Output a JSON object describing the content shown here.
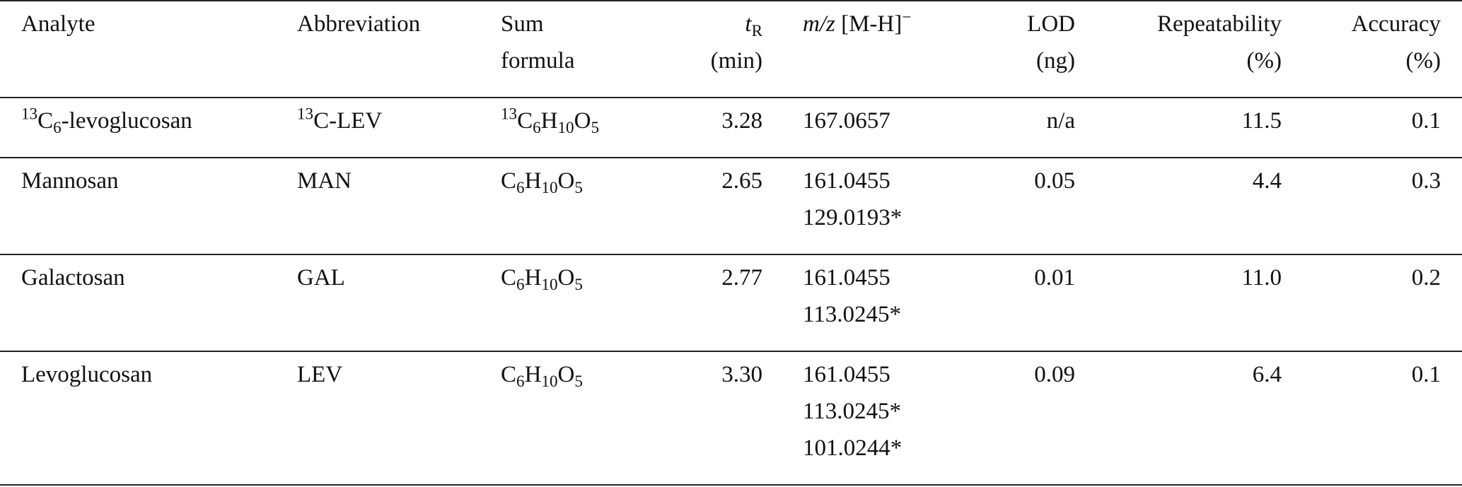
{
  "table": {
    "header": [
      [
        "Analyte"
      ],
      [
        "Abbreviation"
      ],
      [
        "Sum",
        "formula"
      ],
      [
        [
          {
            "text": "t",
            "italic": true
          },
          {
            "text": "R",
            "pos": "sub"
          }
        ],
        "(min)"
      ],
      [
        [
          {
            "text": "m/z",
            "italic": true
          },
          {
            "text": " [M-H]"
          },
          {
            "text": "−",
            "pos": "sup"
          }
        ]
      ],
      [
        "LOD",
        "(ng)"
      ],
      [
        "Repeatability",
        "(%)"
      ],
      [
        "Accuracy",
        "(%)"
      ]
    ],
    "rows": [
      [
        [
          [
            {
              "text": "13",
              "pos": "sup"
            },
            {
              "text": "C"
            },
            {
              "text": "6",
              "pos": "sub"
            },
            {
              "text": "-levoglucosan"
            }
          ]
        ],
        [
          [
            {
              "text": "13",
              "pos": "sup"
            },
            {
              "text": "C-LEV"
            }
          ]
        ],
        [
          [
            {
              "text": "13",
              "pos": "sup"
            },
            {
              "text": "C"
            },
            {
              "text": "6",
              "pos": "sub"
            },
            {
              "text": "H"
            },
            {
              "text": "10",
              "pos": "sub"
            },
            {
              "text": "O"
            },
            {
              "text": "5",
              "pos": "sub"
            }
          ]
        ],
        [
          "3.28"
        ],
        [
          "167.0657"
        ],
        [
          "n/a"
        ],
        [
          "11.5"
        ],
        [
          "0.1"
        ]
      ],
      [
        [
          "Mannosan"
        ],
        [
          "MAN"
        ],
        [
          [
            {
              "text": "C"
            },
            {
              "text": "6",
              "pos": "sub"
            },
            {
              "text": "H"
            },
            {
              "text": "10",
              "pos": "sub"
            },
            {
              "text": "O"
            },
            {
              "text": "5",
              "pos": "sub"
            }
          ]
        ],
        [
          "2.65"
        ],
        [
          "161.0455",
          "129.0193*"
        ],
        [
          "0.05"
        ],
        [
          "4.4"
        ],
        [
          "0.3"
        ]
      ],
      [
        [
          "Galactosan"
        ],
        [
          "GAL"
        ],
        [
          [
            {
              "text": "C"
            },
            {
              "text": "6",
              "pos": "sub"
            },
            {
              "text": "H"
            },
            {
              "text": "10",
              "pos": "sub"
            },
            {
              "text": "O"
            },
            {
              "text": "5",
              "pos": "sub"
            }
          ]
        ],
        [
          "2.77"
        ],
        [
          "161.0455",
          "113.0245*"
        ],
        [
          "0.01"
        ],
        [
          "11.0"
        ],
        [
          "0.2"
        ]
      ],
      [
        [
          "Levoglucosan"
        ],
        [
          "LEV"
        ],
        [
          [
            {
              "text": "C"
            },
            {
              "text": "6",
              "pos": "sub"
            },
            {
              "text": "H"
            },
            {
              "text": "10",
              "pos": "sub"
            },
            {
              "text": "O"
            },
            {
              "text": "5",
              "pos": "sub"
            }
          ]
        ],
        [
          "3.30"
        ],
        [
          "161.0455",
          "113.0245*",
          "101.0244*"
        ],
        [
          "0.09"
        ],
        [
          "6.4"
        ],
        [
          "0.1"
        ]
      ]
    ]
  }
}
